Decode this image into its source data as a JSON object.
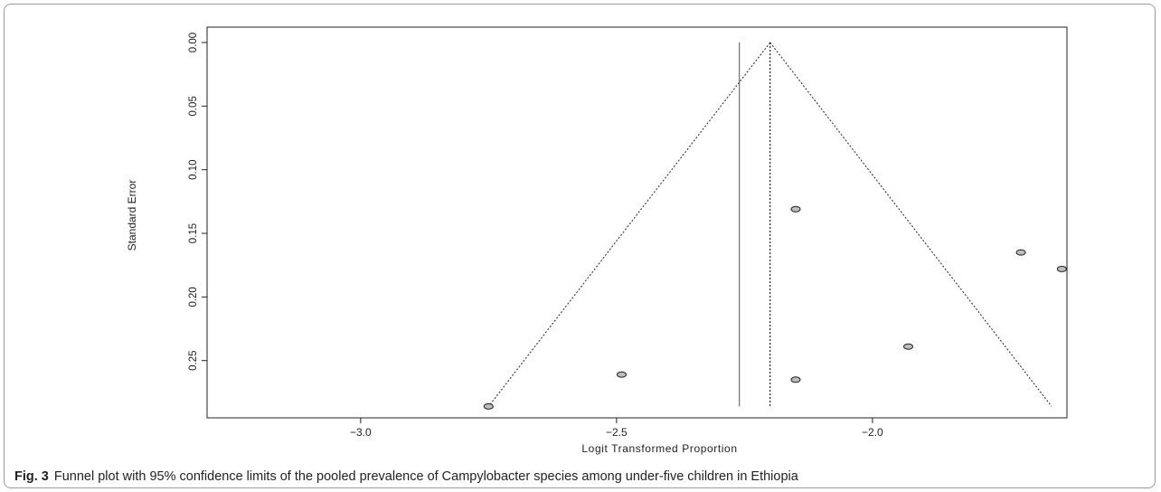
{
  "chart_data": {
    "type": "scatter",
    "subtype": "funnel",
    "xlabel": "Logit Transformed Proportion",
    "ylabel": "Standard Error",
    "x_ticks": [
      -3.0,
      -2.5,
      -2.0
    ],
    "x_tick_labels": [
      "−3.0",
      "−2.5",
      "−2.0"
    ],
    "y_ticks": [
      0.0,
      0.05,
      0.1,
      0.15,
      0.2,
      0.25
    ],
    "y_tick_labels": [
      "0.00",
      "0.05",
      "0.10",
      "0.15",
      "0.20",
      "0.25"
    ],
    "xlim": [
      -3.3,
      -1.62
    ],
    "ylim": [
      0.0,
      0.295
    ],
    "y_reversed": true,
    "grid": false,
    "points": [
      {
        "x": -2.15,
        "y": 0.131
      },
      {
        "x": -1.71,
        "y": 0.165
      },
      {
        "x": -1.63,
        "y": 0.178
      },
      {
        "x": -1.93,
        "y": 0.239
      },
      {
        "x": -2.49,
        "y": 0.261
      },
      {
        "x": -2.15,
        "y": 0.265
      },
      {
        "x": -2.75,
        "y": 0.286
      }
    ],
    "pooled_estimate": -2.2,
    "reference_line": -2.26,
    "funnel": {
      "apex": [
        -2.2,
        0.0
      ],
      "left_base": [
        -2.75,
        0.286
      ],
      "right_base": [
        -1.65,
        0.286
      ]
    }
  },
  "caption": {
    "label": "Fig. 3",
    "text": "Funnel plot with 95% confidence limits of the pooled prevalence of Campylobacter species among under-five children in Ethiopia"
  }
}
